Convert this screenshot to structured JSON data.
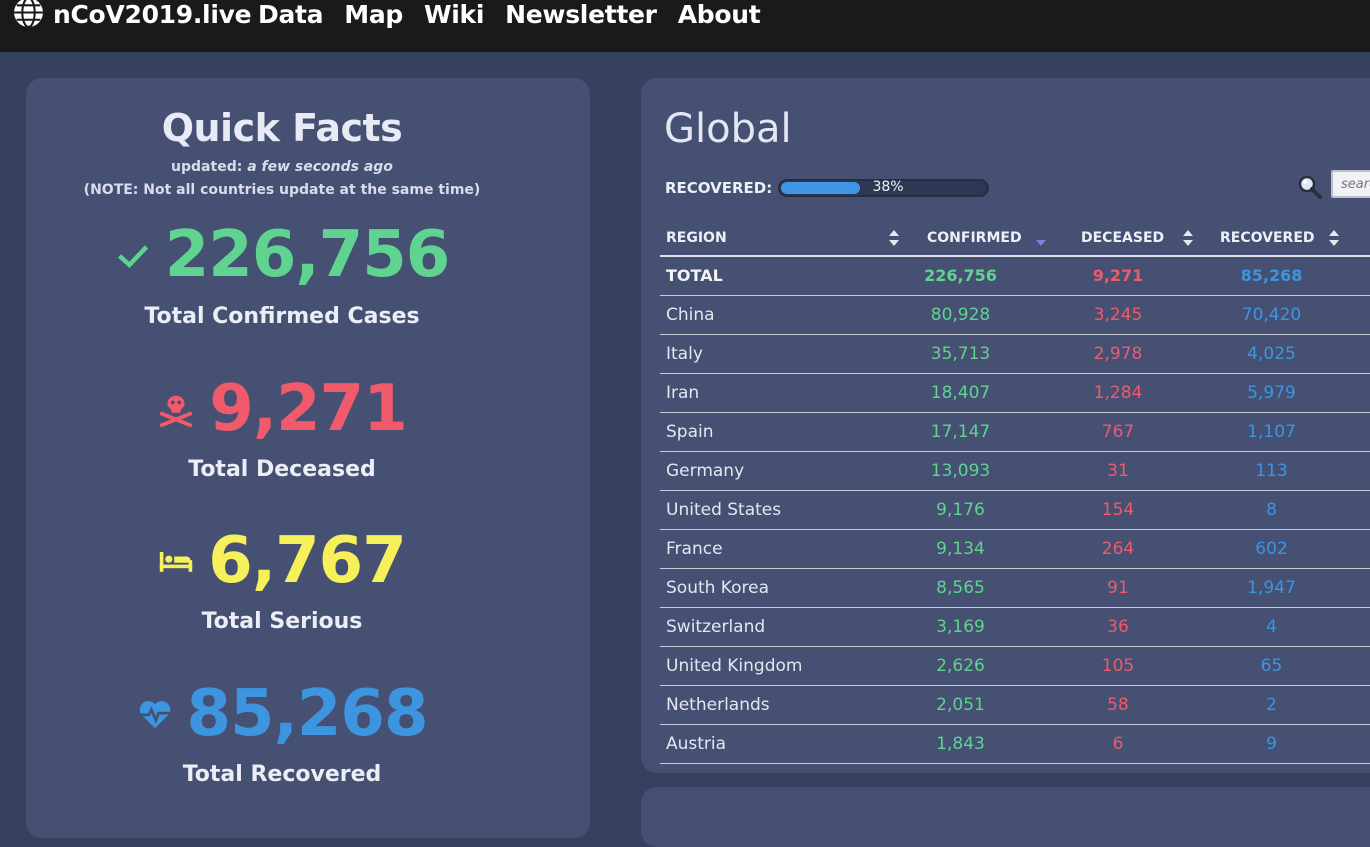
{
  "nav": {
    "brand": "nCoV2019.live",
    "links": [
      "Data",
      "Map",
      "Wiki",
      "Newsletter",
      "About"
    ]
  },
  "quick_facts": {
    "title": "Quick Facts",
    "updated_prefix": "updated: ",
    "updated_value": "a few seconds ago",
    "note": "(NOTE: Not all countries update at the same time)",
    "stats": [
      {
        "icon": "check-icon",
        "value": "226,756",
        "label": "Total Confirmed Cases",
        "color": "#5fd38f"
      },
      {
        "icon": "skull-crossbones-icon",
        "value": "9,271",
        "label": "Total Deceased",
        "color": "#f05a6a"
      },
      {
        "icon": "hospital-bed-icon",
        "value": "6,767",
        "label": "Total Serious",
        "color": "#f6f05a"
      },
      {
        "icon": "heartbeat-icon",
        "value": "85,268",
        "label": "Total Recovered",
        "color": "#3d95e0"
      }
    ]
  },
  "global": {
    "title": "Global",
    "recovered_label": "RECOVERED:",
    "recovered_percent": 38,
    "recovered_percent_text": "38%",
    "search_placeholder": "search",
    "columns": [
      "REGION",
      "CONFIRMED",
      "DECEASED",
      "RECOVERED"
    ],
    "total": {
      "region": "TOTAL",
      "confirmed": "226,756",
      "deceased": "9,271",
      "recovered": "85,268"
    },
    "rows": [
      {
        "region": "China",
        "confirmed": "80,928",
        "deceased": "3,245",
        "recovered": "70,420"
      },
      {
        "region": "Italy",
        "confirmed": "35,713",
        "deceased": "2,978",
        "recovered": "4,025"
      },
      {
        "region": "Iran",
        "confirmed": "18,407",
        "deceased": "1,284",
        "recovered": "5,979"
      },
      {
        "region": "Spain",
        "confirmed": "17,147",
        "deceased": "767",
        "recovered": "1,107"
      },
      {
        "region": "Germany",
        "confirmed": "13,093",
        "deceased": "31",
        "recovered": "113"
      },
      {
        "region": "United States",
        "confirmed": "9,176",
        "deceased": "154",
        "recovered": "8"
      },
      {
        "region": "France",
        "confirmed": "9,134",
        "deceased": "264",
        "recovered": "602"
      },
      {
        "region": "South Korea",
        "confirmed": "8,565",
        "deceased": "91",
        "recovered": "1,947"
      },
      {
        "region": "Switzerland",
        "confirmed": "3,169",
        "deceased": "36",
        "recovered": "4"
      },
      {
        "region": "United Kingdom",
        "confirmed": "2,626",
        "deceased": "105",
        "recovered": "65"
      },
      {
        "region": "Netherlands",
        "confirmed": "2,051",
        "deceased": "58",
        "recovered": "2"
      },
      {
        "region": "Austria",
        "confirmed": "1,843",
        "deceased": "6",
        "recovered": "9"
      }
    ]
  }
}
